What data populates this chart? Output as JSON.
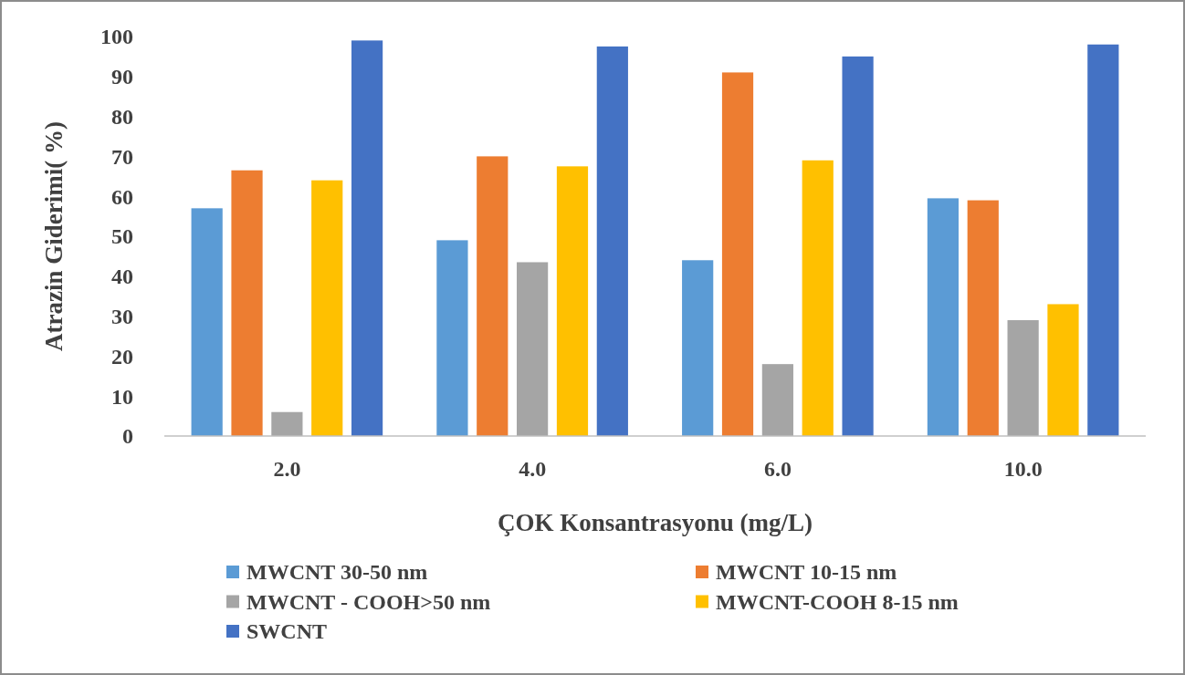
{
  "chart_data": {
    "type": "bar",
    "xlabel": "ÇOK Konsantrasyonu (mg/L)",
    "ylabel": "Atrazin Giderimi( %)",
    "categories": [
      "2.0",
      "4.0",
      "6.0",
      "10.0"
    ],
    "series": [
      {
        "name": "MWCNT 30-50 nm",
        "color": "#5b9bd5",
        "values": [
          57,
          49,
          44,
          59.5
        ]
      },
      {
        "name": "MWCNT 10-15 nm",
        "color": "#ed7d31",
        "values": [
          66.5,
          70,
          91,
          59
        ]
      },
      {
        "name": "MWCNT - COOH>50 nm",
        "color": "#a5a5a5",
        "values": [
          6,
          43.5,
          18,
          29
        ]
      },
      {
        "name": "MWCNT-COOH 8-15 nm",
        "color": "#ffc000",
        "values": [
          64,
          67.5,
          69,
          33
        ]
      },
      {
        "name": "SWCNT",
        "color": "#4472c4",
        "values": [
          99,
          97.5,
          95,
          98
        ]
      }
    ],
    "ylim": [
      0,
      100
    ],
    "yticks": [
      0,
      10,
      20,
      30,
      40,
      50,
      60,
      70,
      80,
      90,
      100
    ],
    "grid": false,
    "legend": "bottom"
  }
}
